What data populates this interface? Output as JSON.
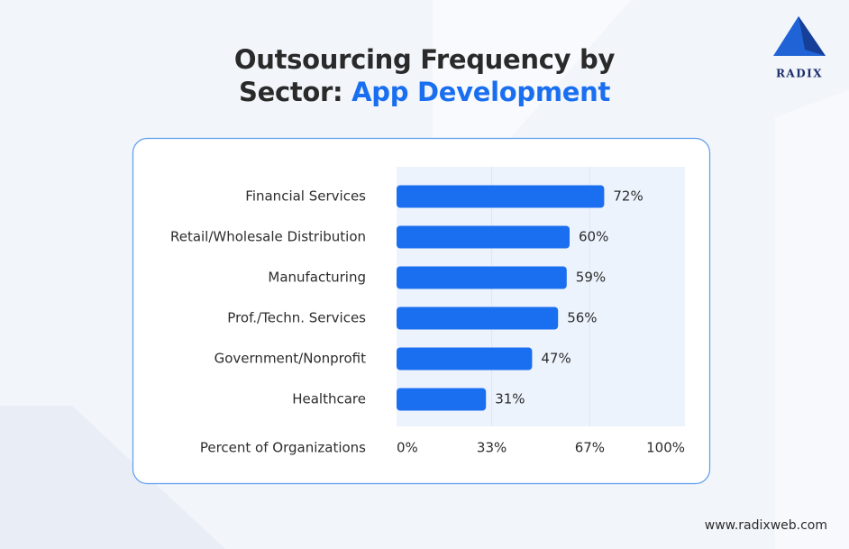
{
  "brand": "RADIX",
  "website": "www.radixweb.com",
  "chart_data": {
    "type": "bar",
    "orientation": "horizontal",
    "title": "Outsourcing Frequency by Sector:",
    "title_highlight": "App Development",
    "categories": [
      "Financial Services",
      "Retail/Wholesale Distribution",
      "Manufacturing",
      "Prof./Techn. Services",
      "Government/Nonprofit",
      "Healthcare"
    ],
    "values": [
      72,
      60,
      59,
      56,
      47,
      31
    ],
    "value_labels": [
      "72%",
      "60%",
      "59%",
      "56%",
      "47%",
      "31%"
    ],
    "color": "#1a6ff0",
    "x_label": "Percent of Organizations",
    "xlim": [
      0,
      100
    ],
    "xticks": [
      {
        "value": 0,
        "label": "0%"
      },
      {
        "value": 33,
        "label": "33%"
      },
      {
        "value": 67,
        "label": "67%"
      },
      {
        "value": 100,
        "label": "100%"
      }
    ],
    "grid": true
  }
}
